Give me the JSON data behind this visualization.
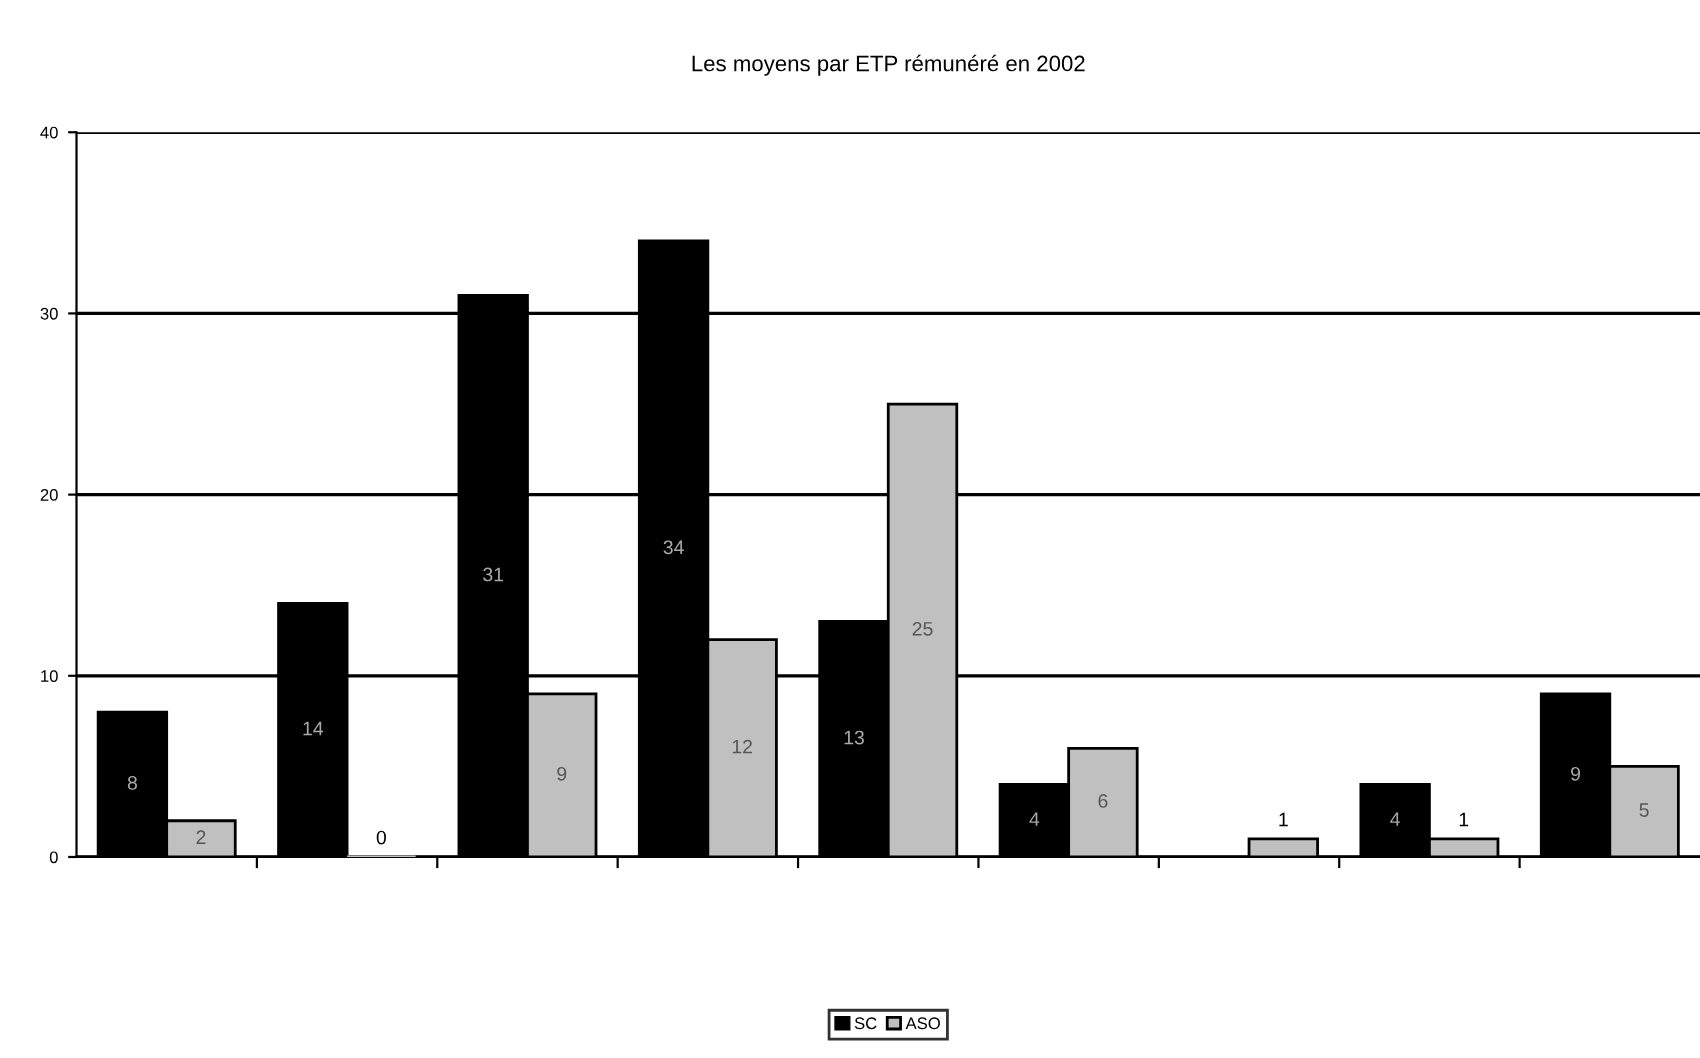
{
  "chart_data": {
    "type": "bar",
    "title": "Les moyens par ETP rémunéré en 2002",
    "categories": [
      null,
      null,
      null,
      null,
      null,
      null,
      null,
      null,
      null
    ],
    "series": [
      {
        "name": "SC",
        "color": "#000000",
        "values": [
          8,
          14,
          31,
          34,
          13,
          4,
          null,
          4,
          9
        ]
      },
      {
        "name": "ASO",
        "color": "#c0c0c0",
        "values": [
          2,
          0,
          9,
          12,
          25,
          6,
          1,
          1,
          5
        ]
      }
    ],
    "ylim": [
      0,
      40
    ],
    "yticks": [
      0,
      10,
      20,
      30,
      40
    ],
    "grid": "y",
    "legend": "bottom",
    "data_labels": true
  }
}
